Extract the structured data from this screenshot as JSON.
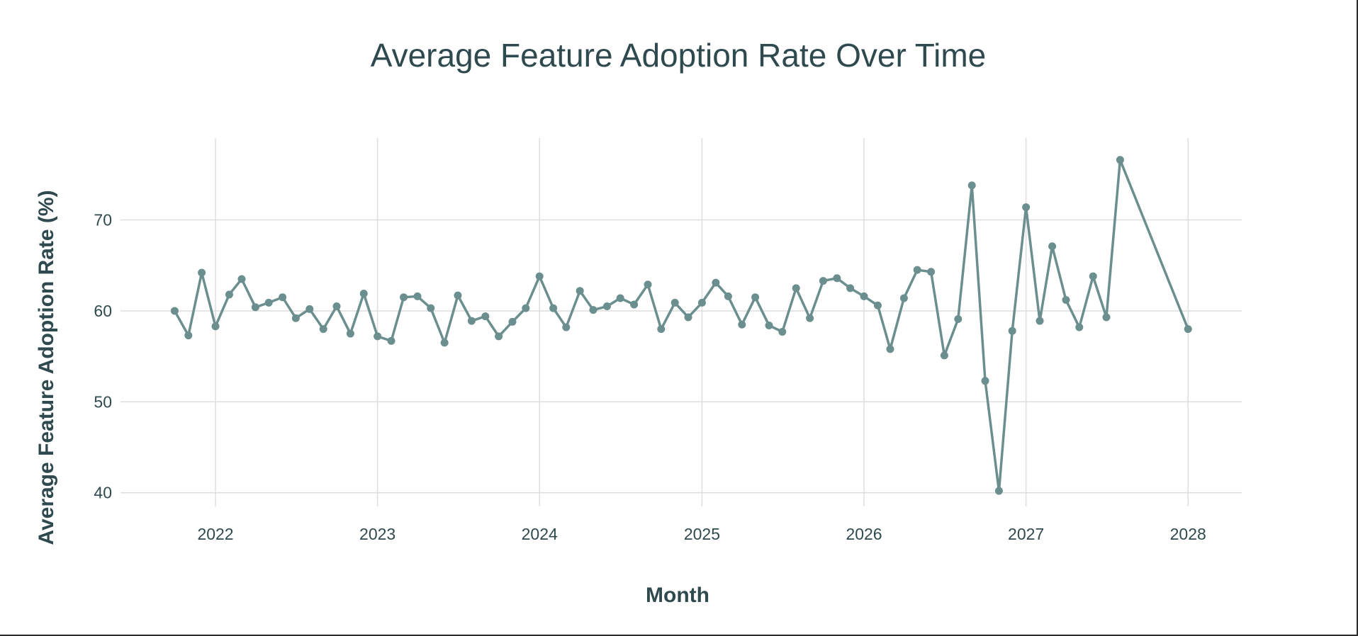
{
  "chart_data": {
    "type": "line",
    "title": "Average Feature Adoption Rate Over Time",
    "xlabel": "Month",
    "ylabel": "Average Feature Adoption Rate (%)",
    "x_ticks": [
      "2022",
      "2023",
      "2024",
      "2025",
      "2026",
      "2027",
      "2028"
    ],
    "y_ticks": [
      40,
      50,
      60,
      70
    ],
    "xlim": [
      "2021-06-01",
      "2028-05-01"
    ],
    "ylim": [
      38.5,
      79
    ],
    "grid": true,
    "legend": "none",
    "line_color": "#6b8e8e",
    "series": [
      {
        "x": [
          "2021-10-01",
          "2021-11-01",
          "2021-12-01",
          "2022-01-01",
          "2022-02-01",
          "2022-03-01",
          "2022-04-01",
          "2022-05-01",
          "2022-06-01",
          "2022-07-01",
          "2022-08-01",
          "2022-09-01",
          "2022-10-01",
          "2022-11-01",
          "2022-12-01",
          "2023-01-01",
          "2023-02-01",
          "2023-03-01",
          "2023-04-01",
          "2023-05-01",
          "2023-06-01",
          "2023-07-01",
          "2023-08-01",
          "2023-09-01",
          "2023-10-01",
          "2023-11-01",
          "2023-12-01",
          "2024-01-01",
          "2024-02-01",
          "2024-03-01",
          "2024-04-01",
          "2024-05-01",
          "2024-06-01",
          "2024-07-01",
          "2024-08-01",
          "2024-09-01",
          "2024-10-01",
          "2024-11-01",
          "2024-12-01",
          "2025-01-01",
          "2025-02-01",
          "2025-03-01",
          "2025-04-01",
          "2025-05-01",
          "2025-06-01",
          "2025-07-01",
          "2025-08-01",
          "2025-09-01",
          "2025-10-01",
          "2025-11-01",
          "2025-12-01",
          "2026-01-01",
          "2026-02-01",
          "2026-03-01",
          "2026-04-01",
          "2026-05-01",
          "2026-06-01",
          "2026-07-01",
          "2026-08-01",
          "2026-09-01",
          "2026-10-01",
          "2026-11-01",
          "2026-12-01",
          "2027-01-01",
          "2027-02-01",
          "2027-03-01",
          "2027-04-01",
          "2027-05-01",
          "2027-06-01",
          "2027-07-01",
          "2027-08-01",
          "2028-01-01"
        ],
        "y": [
          60.0,
          57.3,
          64.2,
          58.3,
          61.8,
          63.5,
          60.4,
          60.9,
          61.5,
          59.2,
          60.2,
          58.0,
          60.5,
          57.5,
          61.9,
          57.2,
          56.7,
          61.5,
          61.6,
          60.3,
          56.5,
          61.7,
          58.9,
          59.4,
          57.2,
          58.8,
          60.3,
          63.8,
          60.3,
          58.2,
          62.2,
          60.1,
          60.5,
          61.4,
          60.7,
          62.9,
          58.0,
          60.9,
          59.3,
          60.9,
          63.1,
          61.6,
          58.5,
          61.5,
          58.4,
          57.7,
          62.5,
          59.2,
          63.3,
          63.6,
          62.5,
          61.6,
          60.6,
          55.8,
          61.4,
          64.5,
          64.3,
          55.1,
          59.1,
          73.8,
          52.3,
          40.2,
          57.8,
          71.4,
          58.9,
          67.1,
          61.2,
          58.2,
          63.8,
          59.3,
          76.6,
          58.0
        ]
      }
    ]
  }
}
